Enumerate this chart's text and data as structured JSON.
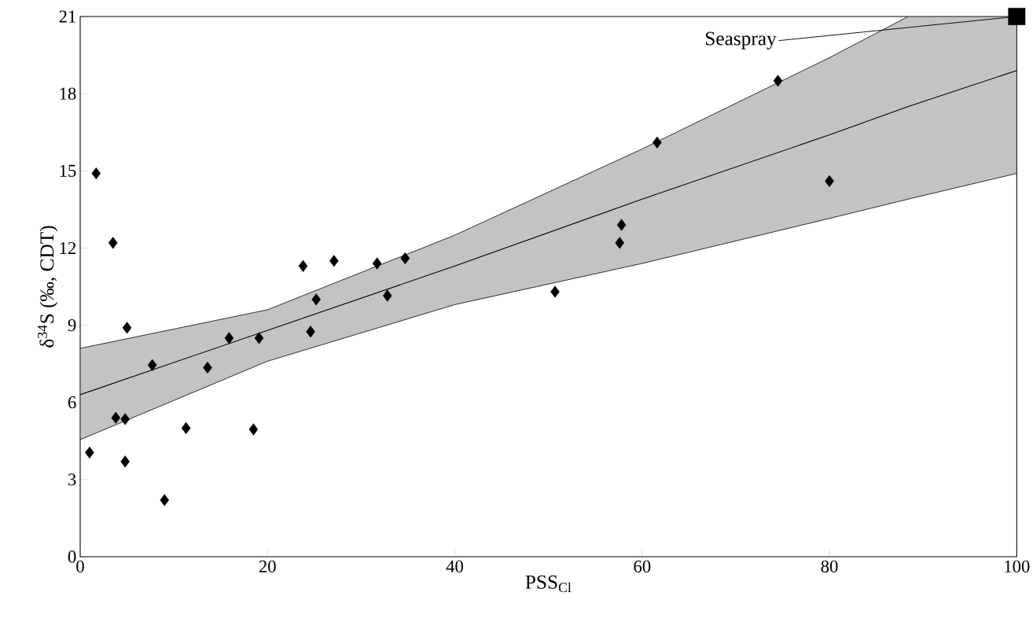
{
  "chart_data": {
    "type": "scatter",
    "xlabel": "PSS$_{Cl}$",
    "ylabel": "δ$^{34}$S (‰, CDT)",
    "xlim": [
      0,
      100
    ],
    "ylim": [
      0,
      21
    ],
    "xticks": [
      0,
      20,
      40,
      60,
      80,
      100
    ],
    "yticks": [
      0,
      3,
      6,
      9,
      12,
      15,
      18,
      21
    ],
    "series": [
      {
        "type": "line",
        "color": "#000000",
        "marker": "none",
        "x": [
          0,
          20,
          40,
          60,
          80,
          88.4,
          100
        ],
        "values": [
          6.3,
          8.8,
          11.3,
          13.9,
          16.4,
          17.5,
          18.9
        ],
        "lower": [
          4.55,
          7.6,
          9.8,
          11.4,
          13.15,
          13.9,
          14.9
        ],
        "upper": [
          8.1,
          9.6,
          12.5,
          15.85,
          19.4,
          21,
          21
        ]
      },
      {
        "type": "scatter",
        "color": "#000000",
        "marker": "diamond",
        "x": [
          1.7,
          3.5,
          5.0,
          7.7,
          13.6,
          15.9,
          19.1,
          24.6,
          25.2,
          23.8,
          27.1,
          31.7,
          34.7,
          32.8,
          3.8,
          4.8,
          11.3,
          18.5,
          1.0,
          4.8,
          9.0,
          50.7,
          57.6,
          57.8,
          61.6,
          74.5,
          80.0
        ],
        "values": [
          14.9,
          12.2,
          8.9,
          7.45,
          7.35,
          8.5,
          8.5,
          8.75,
          10.0,
          11.3,
          11.5,
          11.4,
          11.6,
          10.15,
          5.4,
          5.35,
          5.0,
          4.95,
          4.05,
          3.7,
          2.2,
          10.3,
          12.2,
          12.9,
          16.1,
          18.5,
          14.6
        ]
      },
      {
        "type": "scatter",
        "color": "#000000",
        "marker": "square",
        "x": [
          100
        ],
        "values": [
          21
        ]
      }
    ],
    "annotations": [
      {
        "text": "Seaspray",
        "x": 100,
        "y": 21
      }
    ]
  }
}
